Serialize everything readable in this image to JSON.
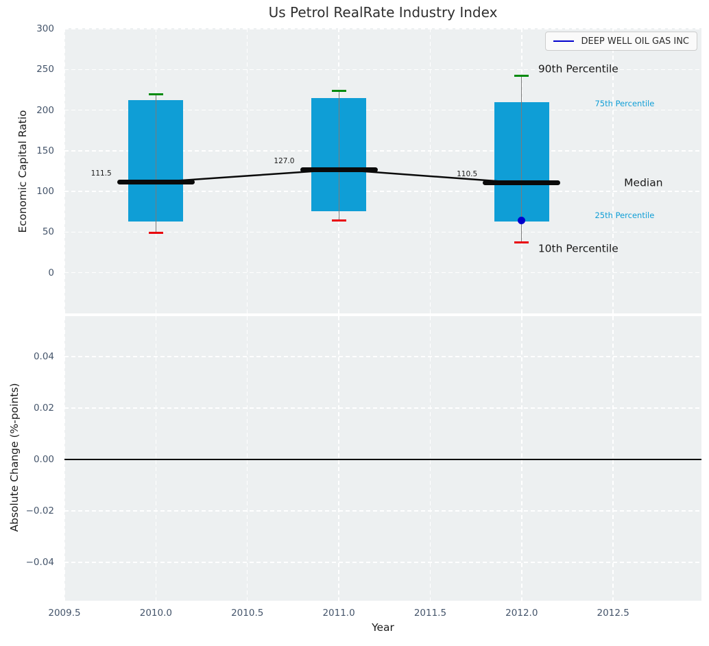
{
  "chart_data": {
    "type": "boxplot-timeseries",
    "title": "Us Petrol RealRate Industry Index",
    "xlabel": "Year",
    "x_ticks": [
      2009.5,
      2010.0,
      2010.5,
      2011.0,
      2011.5,
      2012.0,
      2012.5
    ],
    "xlim": [
      2009.5,
      2012.983
    ],
    "grid": "white-dashed",
    "plot_background": "#edf0f1",
    "panels": [
      {
        "name": "industry-index",
        "ylabel": "Economic Capital Ratio",
        "ylim": [
          -50,
          301
        ],
        "y_ticks": [
          300,
          250,
          200,
          150,
          100,
          50,
          0
        ],
        "legend": {
          "label": "DEEP WELL OIL GAS INC",
          "color": "#0000cd",
          "position": "upper-right"
        },
        "boxes": [
          {
            "year": 2010,
            "p10": 49,
            "p25": 63,
            "median": 111.5,
            "p75": 212,
            "p90": 220,
            "median_label": "111.5"
          },
          {
            "year": 2011,
            "p10": 64,
            "p25": 76,
            "median": 127.0,
            "p75": 215,
            "p90": 224,
            "median_label": "127.0"
          },
          {
            "year": 2012,
            "p10": 37,
            "p25": 63,
            "median": 110.5,
            "p75": 210,
            "p90": 242,
            "median_label": "110.5"
          }
        ],
        "company_point": {
          "name": "DEEP WELL OIL GAS INC",
          "year": 2012,
          "value": 64
        },
        "annotations": [
          {
            "text": "90th Percentile",
            "x": 2012.09,
            "y": 250,
            "style": "large"
          },
          {
            "text": "75th Percentile",
            "x": 2012.4,
            "y": 207,
            "style": "small"
          },
          {
            "text": "Median",
            "x": 2012.56,
            "y": 110.5,
            "style": "large"
          },
          {
            "text": "25th Percentile",
            "x": 2012.4,
            "y": 70,
            "style": "small"
          },
          {
            "text": "10th Percentile",
            "x": 2012.09,
            "y": 29,
            "style": "large"
          }
        ],
        "colors": {
          "box": "#0f9ed6",
          "cap_top": "#008a0e",
          "cap_bottom": "#e8000b",
          "median": "#0a0a0a",
          "whisker": "#7a7a7a",
          "company": "#0000cd",
          "small_annotation": "#0f9ed6"
        }
      },
      {
        "name": "absolute-change",
        "ylabel": "Absolute Change (%-points)",
        "ylim": [
          -0.0549,
          0.0558
        ],
        "y_ticks": [
          0.04,
          0.02,
          0.0,
          -0.02,
          -0.04
        ],
        "zero_line": true,
        "series": []
      }
    ]
  }
}
